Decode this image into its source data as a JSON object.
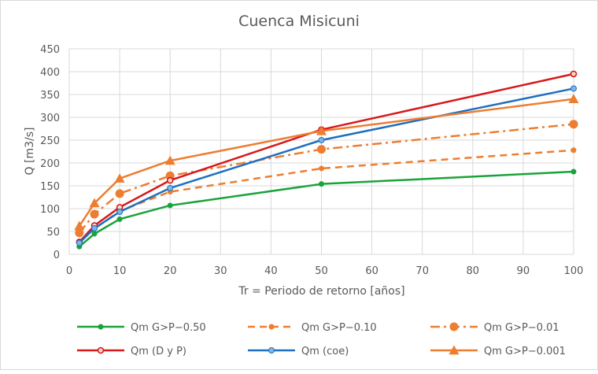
{
  "chart_data": {
    "type": "line",
    "title": "Cuenca Misicuni",
    "xlabel": "Tr = Periodo de retorno [años]",
    "ylabel": "Q [m3/s]",
    "xlim": [
      0,
      100
    ],
    "ylim": [
      0,
      450
    ],
    "xticks": [
      0,
      10,
      20,
      30,
      40,
      50,
      60,
      70,
      80,
      90,
      100
    ],
    "yticks": [
      0,
      50,
      100,
      150,
      200,
      250,
      300,
      350,
      400,
      450
    ],
    "grid": true,
    "legend_position": "bottom",
    "series": [
      {
        "name": "Qm G>P−0.50",
        "color": "#1aa33a",
        "dash": "solid",
        "marker": "dot",
        "x": [
          2,
          5,
          10,
          20,
          50,
          100
        ],
        "y": [
          17,
          45,
          77,
          107,
          154,
          181
        ]
      },
      {
        "name": "Qm G>P−0.10",
        "color": "#ed7d31",
        "dash": "dash",
        "marker": "dot",
        "x": [
          2,
          5,
          10,
          20,
          50,
          100
        ],
        "y": [
          28,
          56,
          95,
          137,
          188,
          228
        ]
      },
      {
        "name": "Qm G>P−0.01",
        "color": "#ed7d31",
        "dash": "dashdot",
        "marker": "big-dot",
        "x": [
          2,
          5,
          10,
          20,
          50,
          100
        ],
        "y": [
          47,
          88,
          133,
          172,
          230,
          285
        ]
      },
      {
        "name": "Qm (D y P)",
        "color": "#d7191c",
        "dash": "solid",
        "marker": "ring",
        "x": [
          2,
          5,
          10,
          20,
          50,
          100
        ],
        "y": [
          27,
          63,
          103,
          162,
          273,
          395
        ]
      },
      {
        "name": "Qm (coe)",
        "color": "#1f6fbf",
        "dash": "solid",
        "marker": "dot-light",
        "x": [
          2,
          5,
          10,
          20,
          50,
          100
        ],
        "y": [
          25,
          57,
          93,
          145,
          250,
          363
        ]
      },
      {
        "name": "Qm G>P−0.001",
        "color": "#ed7d31",
        "dash": "solid",
        "marker": "triangle",
        "x": [
          2,
          5,
          10,
          20,
          50,
          100
        ],
        "y": [
          62,
          112,
          166,
          205,
          270,
          340
        ]
      }
    ]
  }
}
